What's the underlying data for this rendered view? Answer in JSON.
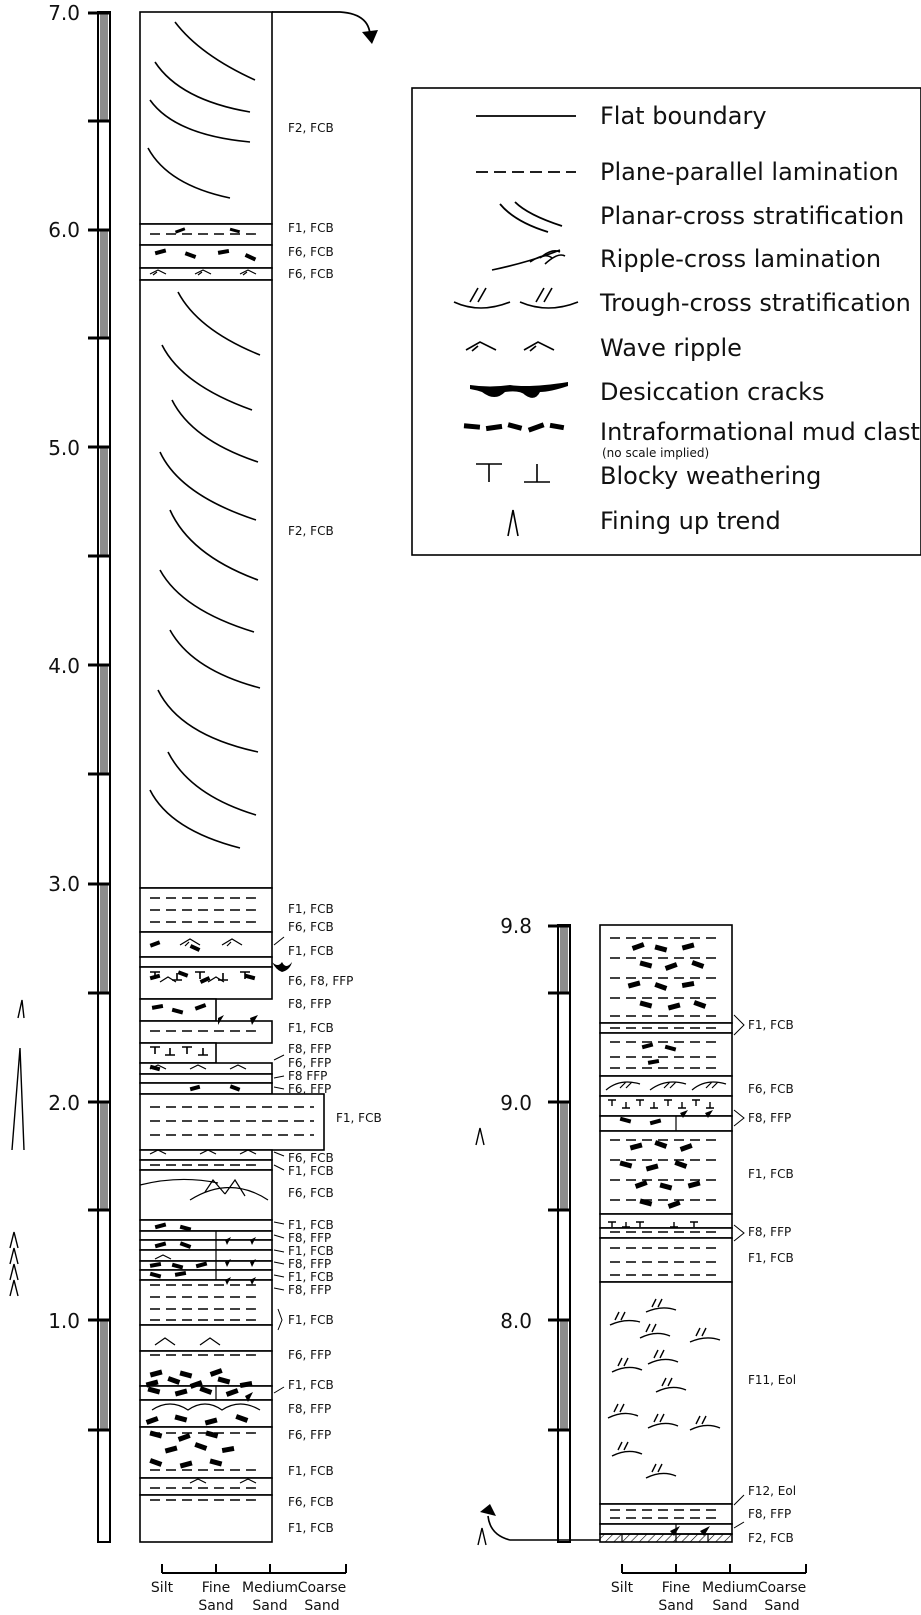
{
  "axis_main": [
    "7.0",
    "6.0",
    "5.0",
    "4.0",
    "3.0",
    "2.0",
    "1.0"
  ],
  "axis_right": [
    "9.8",
    "9.0",
    "8.0"
  ],
  "labels_main": [
    "F2, FCB",
    "F1, FCB",
    "F6, FCB",
    "F6, FCB",
    "F2, FCB",
    "F1, FCB",
    "F6, FCB",
    "F1, FCB",
    "F6, F8, FFP",
    "F8, FFP",
    "F1, FCB",
    "F8, FFP",
    "F6, FFP",
    "F8 FFP",
    "F6, FFP",
    "F1, FCB",
    "F6, FCB",
    "F1, FCB",
    "F6, FCB",
    "F1, FCB",
    "F8, FFP",
    "F1, FCB",
    "F8, FFP",
    "F1, FCB",
    "F8, FFP",
    "F1, FCB",
    "F6, FFP",
    "F1, FCB",
    "F8, FFP",
    "F6, FFP",
    "F1, FCB",
    "F6, FCB",
    "F1, FCB"
  ],
  "labels_right": [
    "F1, FCB",
    "F6, FCB",
    "F8, FFP",
    "F1, FCB",
    "F8, FFP",
    "F1, FCB",
    "F11, Eol",
    "F12, Eol",
    "F8, FFP",
    "F2, FCB"
  ],
  "grain_size": {
    "silt": "Silt",
    "fine": [
      "Fine",
      "Sand"
    ],
    "medium": [
      "Medium",
      "Sand"
    ],
    "coarse": [
      "Coarse",
      "Sand"
    ]
  },
  "legend": {
    "flat": "Flat boundary",
    "plane": "Plane-parallel lamination",
    "planar": "Planar-cross stratification",
    "ripple": "Ripple-cross lamination",
    "trough": "Trough-cross stratification",
    "wave": "Wave ripple",
    "desic": "Desiccation cracks",
    "mud": "Intraformational mud clasts",
    "mud_note": "(no scale implied)",
    "blocky": "Blocky weathering",
    "fining": "Fining up trend"
  }
}
